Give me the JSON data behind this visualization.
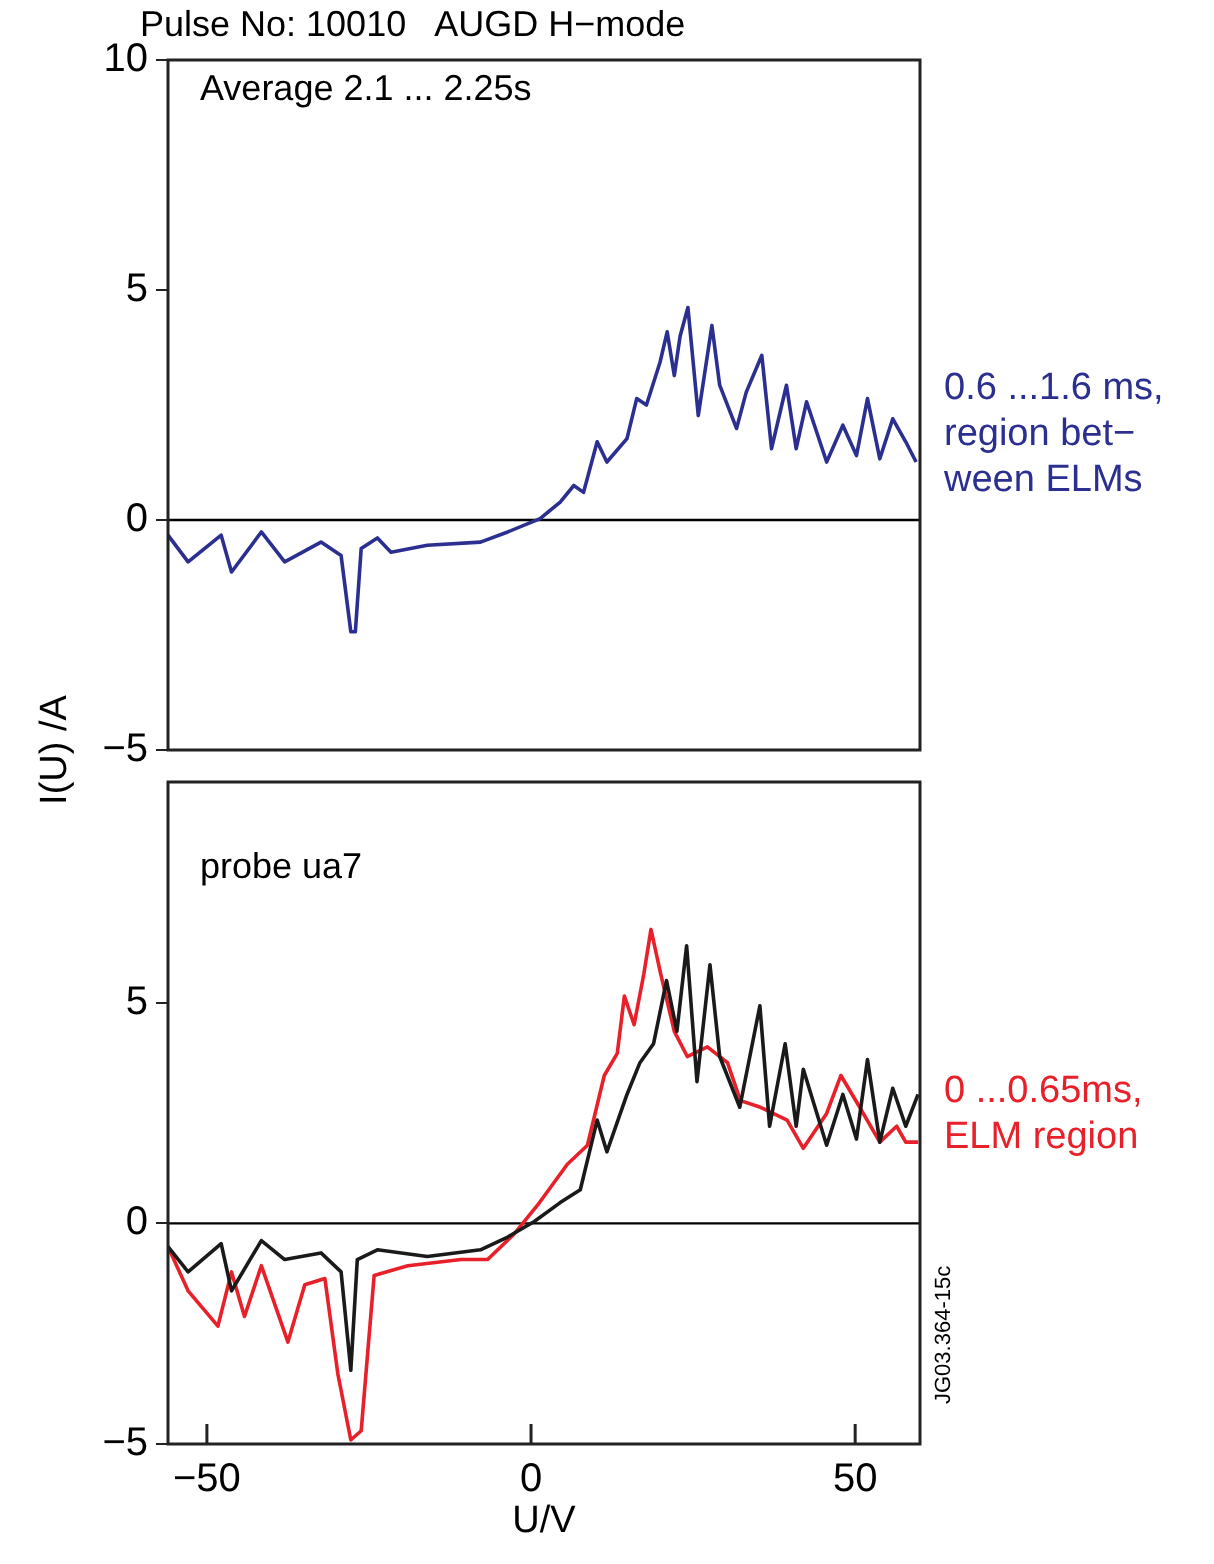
{
  "chart_data": [
    {
      "type": "line",
      "title": "Pulse No: 10010   AUGD H−mode",
      "ylabel": "I(U) /A",
      "annotations": [
        "Average 2.1 ... 2.25s"
      ],
      "xlim": [
        -56,
        60
      ],
      "ylim": [
        -5,
        10
      ],
      "yticks": [
        -5,
        0,
        5,
        10
      ],
      "tick_labels": "y",
      "legend": false,
      "marker": "none",
      "line_style": "solid",
      "ref_lines": [
        {
          "axis": "y",
          "value": 0,
          "color": "#000000"
        }
      ],
      "series": [
        {
          "name": "0.6 ...1.6 ms,\nregion bet−\nween ELMs",
          "color": "#2b2f8f",
          "x": [
            -56,
            -52.9,
            -47.8,
            -46.2,
            -41.6,
            -38.0,
            -32.4,
            -29.3,
            -27.8,
            -27.1,
            -26.2,
            -23.7,
            -21.6,
            -16.0,
            -7.8,
            -3.6,
            1.4,
            4.5,
            6.6,
            8.1,
            10.2,
            11.7,
            14.8,
            16.3,
            17.8,
            19.9,
            21.0,
            22.1,
            23.0,
            24.2,
            25.8,
            27.9,
            29.1,
            31.7,
            33.2,
            35.6,
            37.1,
            39.4,
            40.9,
            42.5,
            45.6,
            48.1,
            50.2,
            51.9,
            53.8,
            55.8,
            57.8,
            59.4
          ],
          "values": [
            -0.33,
            -0.91,
            -0.33,
            -1.13,
            -0.26,
            -0.91,
            -0.48,
            -0.77,
            -2.43,
            -2.43,
            -0.62,
            -0.39,
            -0.7,
            -0.55,
            -0.48,
            -0.26,
            0.03,
            0.39,
            0.75,
            0.6,
            1.7,
            1.26,
            1.77,
            2.64,
            2.5,
            3.43,
            4.09,
            3.14,
            4.0,
            4.62,
            2.27,
            4.23,
            2.93,
            1.99,
            2.78,
            3.58,
            1.55,
            2.93,
            1.55,
            2.57,
            1.26,
            2.06,
            1.4,
            2.64,
            1.33,
            2.2,
            1.7,
            1.26
          ]
        }
      ]
    },
    {
      "type": "line",
      "xlabel": "U/V",
      "annotations": [
        "probe ua7",
        "JG03.364-15c"
      ],
      "xlim": [
        -56,
        60
      ],
      "xticks": [
        -50,
        0,
        50
      ],
      "ylim": [
        -5,
        10
      ],
      "yticks": [
        -5,
        0,
        5
      ],
      "legend": false,
      "marker": "none",
      "line_style": "solid",
      "ref_lines": [
        {
          "axis": "y",
          "value": 0,
          "color": "#000000"
        }
      ],
      "series": [
        {
          "color": "#1a1a1a",
          "x": [
            -56,
            -52.9,
            -47.8,
            -46.2,
            -41.6,
            -38.0,
            -32.4,
            -29.3,
            -27.8,
            -26.8,
            -23.7,
            -16.0,
            -7.8,
            -3.6,
            0.5,
            4.5,
            7.6,
            10.2,
            11.7,
            14.8,
            16.8,
            18.9,
            20.9,
            22.5,
            24.0,
            25.6,
            27.6,
            29.1,
            32.2,
            35.3,
            36.8,
            39.2,
            40.9,
            42.0,
            45.6,
            48.1,
            50.2,
            51.9,
            53.8,
            55.8,
            57.8,
            59.7
          ],
          "values": [
            -0.53,
            -1.1,
            -0.46,
            -1.53,
            -0.39,
            -0.82,
            -0.67,
            -1.1,
            -3.33,
            -0.82,
            -0.6,
            -0.75,
            -0.6,
            -0.31,
            0.04,
            0.47,
            0.76,
            2.34,
            1.62,
            2.92,
            3.64,
            4.07,
            5.5,
            4.35,
            6.29,
            3.21,
            5.86,
            3.78,
            2.63,
            4.93,
            2.2,
            4.07,
            2.2,
            3.49,
            1.77,
            2.92,
            1.91,
            3.71,
            1.84,
            3.06,
            2.2,
            2.92
          ]
        },
        {
          "name": "0 ...0.65ms,\nELM region",
          "color": "#e8202a",
          "x": [
            -56,
            -52.9,
            -48.3,
            -46.2,
            -44.2,
            -41.6,
            -37.5,
            -34.9,
            -31.8,
            -29.8,
            -27.8,
            -26.2,
            -24.2,
            -19.0,
            -10.8,
            -6.7,
            -2.6,
            1.0,
            5.6,
            8.7,
            11.3,
            13.3,
            14.4,
            15.9,
            17.4,
            18.5,
            20.0,
            22.1,
            24.1,
            27.2,
            30.3,
            32.3,
            35.4,
            39.5,
            42.0,
            45.6,
            47.8,
            50.7,
            53.8,
            56.4,
            57.8,
            59.7
          ],
          "values": [
            -0.53,
            -1.53,
            -2.33,
            -1.1,
            -2.11,
            -0.96,
            -2.69,
            -1.39,
            -1.25,
            -3.41,
            -4.91,
            -4.7,
            -1.18,
            -0.96,
            -0.82,
            -0.82,
            -0.24,
            0.41,
            1.34,
            1.77,
            3.35,
            3.85,
            5.15,
            4.5,
            5.65,
            6.66,
            5.65,
            4.35,
            3.78,
            4.0,
            3.64,
            2.78,
            2.63,
            2.34,
            1.7,
            2.49,
            3.35,
            2.63,
            1.84,
            2.2,
            1.84,
            1.84
          ]
        }
      ]
    }
  ]
}
